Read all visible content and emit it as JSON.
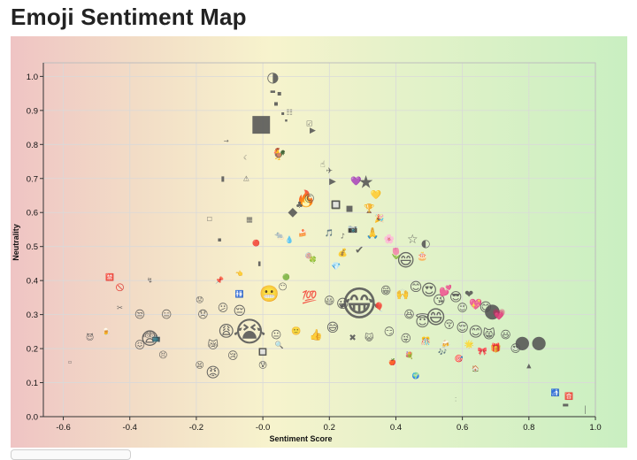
{
  "title": "Emoji Sentiment Map",
  "chart_data": {
    "type": "scatter",
    "title": "Emoji Sentiment Map",
    "xlabel": "Sentiment Score",
    "ylabel": "Neutrality",
    "xlim": [
      -0.66,
      1.0
    ],
    "ylim": [
      0.0,
      1.04
    ],
    "xticks": [
      "-0.6",
      "-0.4",
      "-0.2",
      "-0.0",
      "0.2",
      "0.4",
      "0.6",
      "0.8",
      "1.0"
    ],
    "yticks": [
      "0.0",
      "0.1",
      "0.2",
      "0.3",
      "0.4",
      "0.5",
      "0.6",
      "0.7",
      "0.8",
      "0.9",
      "1.0"
    ],
    "grid": true,
    "background": "sentiment gradient red-yellow-green",
    "colors": {
      "negative": "#efc4c4",
      "neutral": "#f7f3cd",
      "positive": "#c9efc1"
    },
    "points": [
      {
        "x": 0.03,
        "y": 0.998,
        "emoji": "◑",
        "size": 16
      },
      {
        "x": 0.03,
        "y": 0.955,
        "emoji": "▬",
        "size": 7
      },
      {
        "x": 0.05,
        "y": 0.95,
        "emoji": "▪",
        "size": 8
      },
      {
        "x": 0.04,
        "y": 0.92,
        "emoji": "▪",
        "size": 8
      },
      {
        "x": 0.06,
        "y": 0.89,
        "emoji": "▪",
        "size": 6
      },
      {
        "x": 0.08,
        "y": 0.895,
        "emoji": "☷",
        "size": 8
      },
      {
        "x": 0.07,
        "y": 0.87,
        "emoji": "▪",
        "size": 5
      },
      {
        "x": -0.005,
        "y": 0.86,
        "emoji": "■",
        "size": 26
      },
      {
        "x": 0.14,
        "y": 0.86,
        "emoji": "☑",
        "size": 8
      },
      {
        "x": 0.15,
        "y": 0.84,
        "emoji": "▶",
        "size": 9
      },
      {
        "x": -0.11,
        "y": 0.81,
        "emoji": "→",
        "size": 7
      },
      {
        "x": -0.05,
        "y": 0.76,
        "emoji": "☾",
        "size": 7
      },
      {
        "x": 0.05,
        "y": 0.77,
        "emoji": "🐓",
        "size": 13
      },
      {
        "x": -0.12,
        "y": 0.7,
        "emoji": "▮",
        "size": 8
      },
      {
        "x": -0.05,
        "y": 0.7,
        "emoji": "⚠",
        "size": 8
      },
      {
        "x": 0.18,
        "y": 0.74,
        "emoji": "☝",
        "size": 10
      },
      {
        "x": 0.2,
        "y": 0.72,
        "emoji": "✈",
        "size": 9
      },
      {
        "x": 0.21,
        "y": 0.69,
        "emoji": "▶",
        "size": 10
      },
      {
        "x": 0.28,
        "y": 0.69,
        "emoji": "💜",
        "size": 10
      },
      {
        "x": 0.31,
        "y": 0.69,
        "emoji": "★",
        "size": 20
      },
      {
        "x": 0.34,
        "y": 0.65,
        "emoji": "💛",
        "size": 10
      },
      {
        "x": 0.13,
        "y": 0.64,
        "emoji": "🔥",
        "size": 18
      },
      {
        "x": 0.14,
        "y": 0.64,
        "emoji": "©",
        "size": 14
      },
      {
        "x": 0.09,
        "y": 0.6,
        "emoji": "◆",
        "size": 14
      },
      {
        "x": 0.11,
        "y": 0.62,
        "emoji": "♣",
        "size": 10
      },
      {
        "x": 0.22,
        "y": 0.62,
        "emoji": "🔲",
        "size": 9
      },
      {
        "x": 0.26,
        "y": 0.61,
        "emoji": "■",
        "size": 9
      },
      {
        "x": 0.32,
        "y": 0.61,
        "emoji": "🏆",
        "size": 10
      },
      {
        "x": 0.35,
        "y": 0.58,
        "emoji": "🎉",
        "size": 9
      },
      {
        "x": -0.16,
        "y": 0.58,
        "emoji": "☐",
        "size": 7
      },
      {
        "x": -0.04,
        "y": 0.58,
        "emoji": "▦",
        "size": 8
      },
      {
        "x": -0.13,
        "y": 0.52,
        "emoji": "▪",
        "size": 7
      },
      {
        "x": -0.02,
        "y": 0.51,
        "emoji": "🔴",
        "size": 7
      },
      {
        "x": 0.05,
        "y": 0.53,
        "emoji": "🐀",
        "size": 9
      },
      {
        "x": 0.08,
        "y": 0.52,
        "emoji": "💧",
        "size": 8
      },
      {
        "x": 0.12,
        "y": 0.54,
        "emoji": "🍰",
        "size": 8
      },
      {
        "x": 0.2,
        "y": 0.54,
        "emoji": "🎵",
        "size": 8
      },
      {
        "x": 0.24,
        "y": 0.53,
        "emoji": "♪",
        "size": 8
      },
      {
        "x": 0.27,
        "y": 0.55,
        "emoji": "📷",
        "size": 9
      },
      {
        "x": 0.33,
        "y": 0.54,
        "emoji": "🙏",
        "size": 12
      },
      {
        "x": 0.38,
        "y": 0.52,
        "emoji": "🌸",
        "size": 10
      },
      {
        "x": 0.45,
        "y": 0.52,
        "emoji": "☆",
        "size": 14
      },
      {
        "x": 0.49,
        "y": 0.51,
        "emoji": "◐",
        "size": 12
      },
      {
        "x": 0.48,
        "y": 0.47,
        "emoji": "🎂",
        "size": 10
      },
      {
        "x": 0.43,
        "y": 0.46,
        "emoji": "😄",
        "size": 20
      },
      {
        "x": 0.4,
        "y": 0.48,
        "emoji": "🌷",
        "size": 12
      },
      {
        "x": 0.29,
        "y": 0.49,
        "emoji": "✔",
        "size": 12
      },
      {
        "x": 0.24,
        "y": 0.48,
        "emoji": "💰",
        "size": 9
      },
      {
        "x": 0.15,
        "y": 0.46,
        "emoji": "🍀",
        "size": 8
      },
      {
        "x": 0.22,
        "y": 0.44,
        "emoji": "💎",
        "size": 9
      },
      {
        "x": 0.14,
        "y": 0.47,
        "emoji": "🍭",
        "size": 8
      },
      {
        "x": -0.01,
        "y": 0.45,
        "emoji": "▮",
        "size": 7
      },
      {
        "x": -0.07,
        "y": 0.42,
        "emoji": "👈",
        "size": 7
      },
      {
        "x": 0.07,
        "y": 0.41,
        "emoji": "🟢",
        "size": 7
      },
      {
        "x": -0.46,
        "y": 0.41,
        "emoji": "🈲",
        "size": 8
      },
      {
        "x": -0.34,
        "y": 0.4,
        "emoji": "↯",
        "size": 8
      },
      {
        "x": -0.43,
        "y": 0.38,
        "emoji": "🚫",
        "size": 8
      },
      {
        "x": -0.13,
        "y": 0.4,
        "emoji": "📌",
        "size": 8
      },
      {
        "x": -0.07,
        "y": 0.36,
        "emoji": "🚻",
        "size": 8
      },
      {
        "x": 0.02,
        "y": 0.36,
        "emoji": "😬",
        "size": 18
      },
      {
        "x": 0.06,
        "y": 0.38,
        "emoji": "😶",
        "size": 10
      },
      {
        "x": 0.14,
        "y": 0.35,
        "emoji": "💯",
        "size": 14
      },
      {
        "x": 0.2,
        "y": 0.34,
        "emoji": "😃",
        "size": 12
      },
      {
        "x": 0.24,
        "y": 0.33,
        "emoji": "😀",
        "size": 14
      },
      {
        "x": 0.29,
        "y": 0.33,
        "emoji": "😂",
        "size": 40
      },
      {
        "x": 0.35,
        "y": 0.32,
        "emoji": "🎈",
        "size": 10
      },
      {
        "x": 0.37,
        "y": 0.37,
        "emoji": "😁",
        "size": 12
      },
      {
        "x": 0.42,
        "y": 0.36,
        "emoji": "🙌",
        "size": 12
      },
      {
        "x": 0.46,
        "y": 0.38,
        "emoji": "😊",
        "size": 14
      },
      {
        "x": 0.5,
        "y": 0.37,
        "emoji": "😍",
        "size": 18
      },
      {
        "x": 0.53,
        "y": 0.34,
        "emoji": "😘",
        "size": 14
      },
      {
        "x": 0.55,
        "y": 0.37,
        "emoji": "💕",
        "size": 12
      },
      {
        "x": 0.58,
        "y": 0.35,
        "emoji": "😎",
        "size": 14
      },
      {
        "x": 0.6,
        "y": 0.32,
        "emoji": "😉",
        "size": 12
      },
      {
        "x": 0.62,
        "y": 0.36,
        "emoji": "❤",
        "size": 12
      },
      {
        "x": 0.64,
        "y": 0.33,
        "emoji": "💖",
        "size": 12
      },
      {
        "x": 0.67,
        "y": 0.32,
        "emoji": "😋",
        "size": 14
      },
      {
        "x": 0.69,
        "y": 0.31,
        "emoji": "●",
        "size": 22
      },
      {
        "x": 0.71,
        "y": 0.3,
        "emoji": "💗",
        "size": 12
      },
      {
        "x": 0.44,
        "y": 0.3,
        "emoji": "😆",
        "size": 12
      },
      {
        "x": 0.48,
        "y": 0.28,
        "emoji": "😇",
        "size": 16
      },
      {
        "x": 0.52,
        "y": 0.29,
        "emoji": "😄",
        "size": 22
      },
      {
        "x": 0.56,
        "y": 0.27,
        "emoji": "😚",
        "size": 12
      },
      {
        "x": 0.6,
        "y": 0.26,
        "emoji": "😌",
        "size": 14
      },
      {
        "x": 0.64,
        "y": 0.25,
        "emoji": "😊",
        "size": 16
      },
      {
        "x": 0.68,
        "y": 0.24,
        "emoji": "😸",
        "size": 14
      },
      {
        "x": 0.73,
        "y": 0.24,
        "emoji": "😃",
        "size": 12
      },
      {
        "x": 0.78,
        "y": 0.22,
        "emoji": "●",
        "size": 20
      },
      {
        "x": 0.83,
        "y": 0.22,
        "emoji": "●",
        "size": 20
      },
      {
        "x": 0.76,
        "y": 0.2,
        "emoji": "😍",
        "size": 12
      },
      {
        "x": 0.7,
        "y": 0.2,
        "emoji": "🎁",
        "size": 10
      },
      {
        "x": 0.66,
        "y": 0.19,
        "emoji": "🎀",
        "size": 9
      },
      {
        "x": 0.62,
        "y": 0.21,
        "emoji": "🌟",
        "size": 9
      },
      {
        "x": 0.55,
        "y": 0.21,
        "emoji": "🍻",
        "size": 9
      },
      {
        "x": 0.49,
        "y": 0.22,
        "emoji": "🎊",
        "size": 9
      },
      {
        "x": 0.43,
        "y": 0.23,
        "emoji": "😜",
        "size": 12
      },
      {
        "x": 0.38,
        "y": 0.25,
        "emoji": "😏",
        "size": 12
      },
      {
        "x": 0.32,
        "y": 0.23,
        "emoji": "😺",
        "size": 10
      },
      {
        "x": 0.27,
        "y": 0.23,
        "emoji": "✖",
        "size": 10
      },
      {
        "x": 0.21,
        "y": 0.26,
        "emoji": "😅",
        "size": 14
      },
      {
        "x": 0.16,
        "y": 0.24,
        "emoji": "👍",
        "size": 12
      },
      {
        "x": 0.1,
        "y": 0.25,
        "emoji": "🙂",
        "size": 9
      },
      {
        "x": 0.04,
        "y": 0.24,
        "emoji": "😐",
        "size": 12
      },
      {
        "x": -0.04,
        "y": 0.25,
        "emoji": "😭",
        "size": 32
      },
      {
        "x": -0.11,
        "y": 0.25,
        "emoji": "😩",
        "size": 18
      },
      {
        "x": -0.07,
        "y": 0.31,
        "emoji": "😔",
        "size": 14
      },
      {
        "x": -0.12,
        "y": 0.32,
        "emoji": "😕",
        "size": 12
      },
      {
        "x": -0.18,
        "y": 0.3,
        "emoji": "😞",
        "size": 12
      },
      {
        "x": -0.19,
        "y": 0.34,
        "emoji": "😟",
        "size": 9
      },
      {
        "x": -0.29,
        "y": 0.3,
        "emoji": "😑",
        "size": 12
      },
      {
        "x": -0.37,
        "y": 0.3,
        "emoji": "😒",
        "size": 12
      },
      {
        "x": -0.34,
        "y": 0.23,
        "emoji": "😨",
        "size": 20
      },
      {
        "x": -0.37,
        "y": 0.21,
        "emoji": "😖",
        "size": 12
      },
      {
        "x": -0.3,
        "y": 0.18,
        "emoji": "😣",
        "size": 10
      },
      {
        "x": -0.32,
        "y": 0.23,
        "emoji": "📺",
        "size": 8
      },
      {
        "x": -0.43,
        "y": 0.32,
        "emoji": "✂",
        "size": 8
      },
      {
        "x": -0.52,
        "y": 0.23,
        "emoji": "😈",
        "size": 9
      },
      {
        "x": -0.47,
        "y": 0.25,
        "emoji": "🍺",
        "size": 8
      },
      {
        "x": -0.58,
        "y": 0.16,
        "emoji": "▫",
        "size": 6
      },
      {
        "x": -0.15,
        "y": 0.21,
        "emoji": "😿",
        "size": 12
      },
      {
        "x": -0.09,
        "y": 0.18,
        "emoji": "😢",
        "size": 12
      },
      {
        "x": -0.19,
        "y": 0.15,
        "emoji": "😫",
        "size": 10
      },
      {
        "x": -0.15,
        "y": 0.13,
        "emoji": "😡",
        "size": 16
      },
      {
        "x": 0.0,
        "y": 0.19,
        "emoji": "🔲",
        "size": 8
      },
      {
        "x": 0.0,
        "y": 0.15,
        "emoji": "😰",
        "size": 10
      },
      {
        "x": 0.05,
        "y": 0.21,
        "emoji": "🔍",
        "size": 8
      },
      {
        "x": 0.39,
        "y": 0.16,
        "emoji": "🍎",
        "size": 7
      },
      {
        "x": 0.44,
        "y": 0.18,
        "emoji": "💐",
        "size": 8
      },
      {
        "x": 0.46,
        "y": 0.12,
        "emoji": "🌍",
        "size": 7
      },
      {
        "x": 0.54,
        "y": 0.19,
        "emoji": "🎶",
        "size": 8
      },
      {
        "x": 0.59,
        "y": 0.17,
        "emoji": "🎯",
        "size": 8
      },
      {
        "x": 0.64,
        "y": 0.14,
        "emoji": "🏠",
        "size": 7
      },
      {
        "x": 0.8,
        "y": 0.15,
        "emoji": "▲",
        "size": 7
      },
      {
        "x": 0.88,
        "y": 0.07,
        "emoji": "🚮",
        "size": 8
      },
      {
        "x": 0.92,
        "y": 0.06,
        "emoji": "🈴",
        "size": 8
      },
      {
        "x": 0.91,
        "y": 0.035,
        "emoji": "▬",
        "size": 8
      },
      {
        "x": 0.97,
        "y": 0.02,
        "emoji": "│",
        "size": 8
      },
      {
        "x": 0.58,
        "y": 0.05,
        "emoji": "⁚",
        "size": 6
      }
    ]
  }
}
